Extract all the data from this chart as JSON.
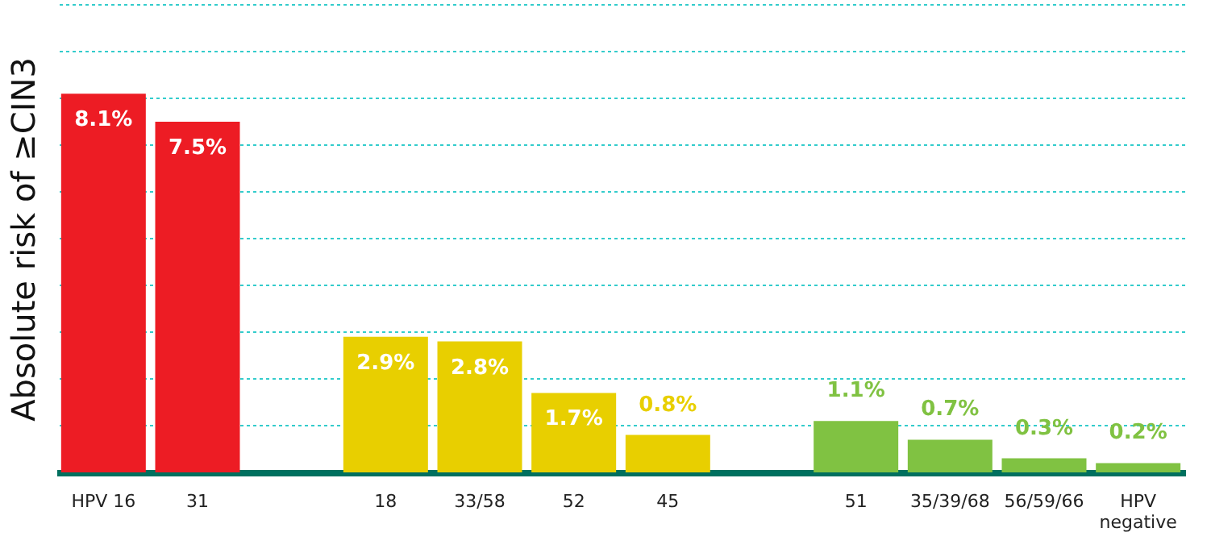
{
  "chart_data": {
    "type": "bar",
    "ylabel": "Absolute risk of ≥CIN3",
    "categories": [
      "HPV 16",
      "31",
      null,
      "18",
      "33/58",
      "52",
      "45",
      null,
      "51",
      "35/39/68",
      "56/59/66",
      "HPV negative"
    ],
    "values": [
      8.1,
      7.5,
      null,
      2.9,
      2.8,
      1.7,
      0.8,
      null,
      1.1,
      0.7,
      0.3,
      0.2
    ],
    "colors": [
      "#ed1c24",
      "#ed1c24",
      null,
      "#e8cf00",
      "#e8cf00",
      "#e8cf00",
      "#e8cf00",
      null,
      "#80c242",
      "#80c242",
      "#80c242",
      "#80c242"
    ],
    "value_labels": [
      "8.1%",
      "7.5%",
      null,
      "2.9%",
      "2.8%",
      "1.7%",
      "0.8%",
      null,
      "1.1%",
      "0.7%",
      "0.3%",
      "0.2%"
    ],
    "ylim": [
      0,
      10
    ],
    "yticks": [
      {
        "value": 1,
        "label": null
      },
      {
        "value": 2,
        "label": null
      },
      {
        "value": 3,
        "label": null
      },
      {
        "value": 4,
        "label": null
      },
      {
        "value": 5,
        "label": null
      },
      {
        "value": 6,
        "label": null
      },
      {
        "value": 7,
        "label": null
      },
      {
        "value": 8,
        "label": null
      },
      {
        "value": 9,
        "label": null
      },
      {
        "value": 10,
        "label": null
      }
    ],
    "tick_labels": "x",
    "grid": "y"
  }
}
